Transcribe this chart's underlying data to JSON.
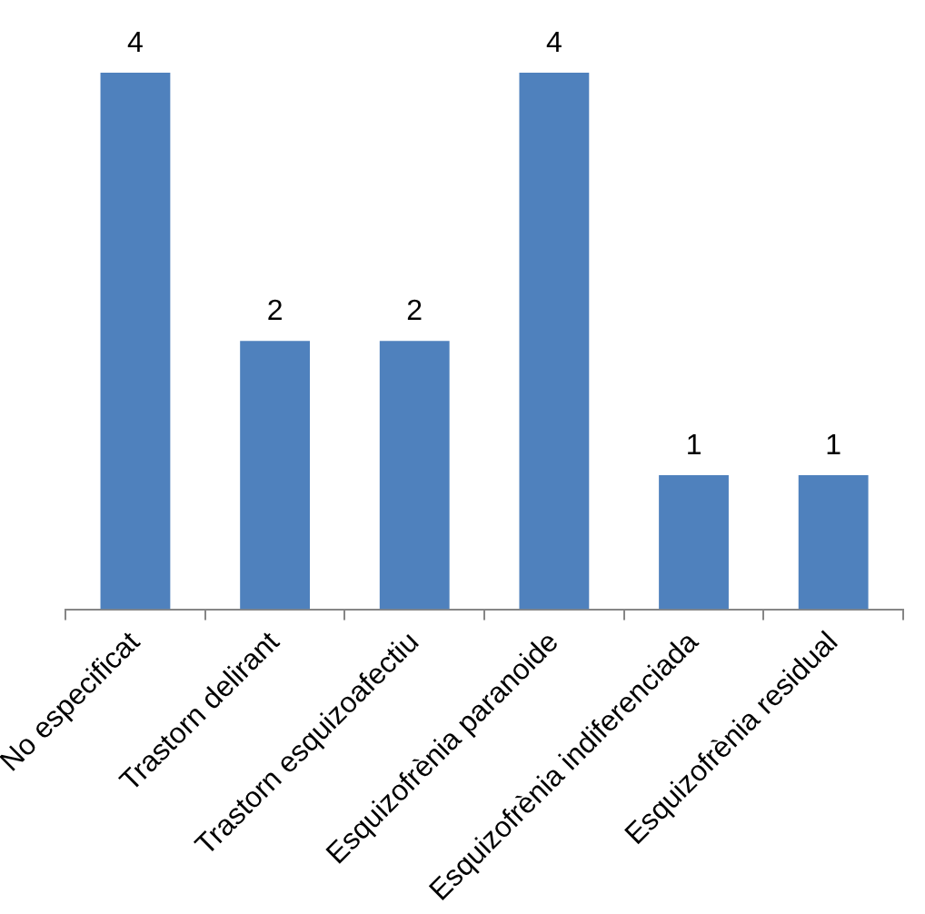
{
  "chart_data": {
    "type": "bar",
    "categories": [
      "No especificat",
      "Trastorn delirant",
      "Trastorn esquizoafectiu",
      "Esquizofrènia paranoide",
      "Esquizofrènia indiferenciada",
      "Esquizofrènia residual"
    ],
    "values": [
      4,
      2,
      2,
      4,
      1,
      1
    ],
    "color": "#4f81bd",
    "data_labels": true,
    "grid": false,
    "legend": false
  }
}
